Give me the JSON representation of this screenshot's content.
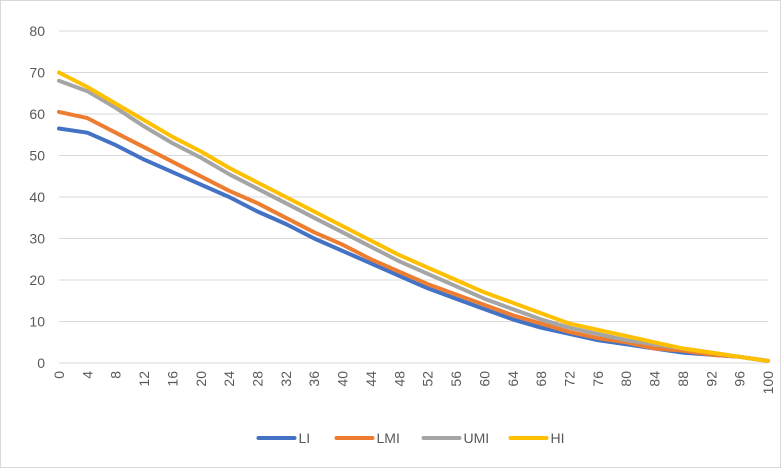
{
  "chart_data": {
    "type": "line",
    "title": "",
    "xlabel": "",
    "ylabel": "",
    "xlim": [
      0,
      100
    ],
    "ylim": [
      0,
      80
    ],
    "x_tick_labels": [
      "0",
      "4",
      "8",
      "12",
      "16",
      "20",
      "24",
      "28",
      "32",
      "36",
      "40",
      "44",
      "48",
      "52",
      "56",
      "60",
      "64",
      "68",
      "72",
      "76",
      "80",
      "84",
      "88",
      "92",
      "96",
      "100"
    ],
    "y_tick_labels": [
      "0",
      "10",
      "20",
      "30",
      "40",
      "50",
      "60",
      "70",
      "80"
    ],
    "grid": "horizontal",
    "legend_position": "bottom",
    "x": [
      0,
      4,
      8,
      12,
      16,
      20,
      24,
      28,
      32,
      36,
      40,
      44,
      48,
      52,
      56,
      60,
      64,
      68,
      72,
      76,
      80,
      84,
      88,
      92,
      96,
      100
    ],
    "series": [
      {
        "name": "LI",
        "color": "#4472C4",
        "values": [
          56.5,
          55.5,
          52.5,
          49.0,
          46.0,
          43.0,
          40.0,
          36.5,
          33.5,
          30.0,
          27.0,
          24.0,
          21.0,
          18.0,
          15.5,
          13.0,
          10.5,
          8.5,
          7.0,
          5.5,
          4.5,
          3.5,
          2.5,
          2.0,
          1.5,
          0.5
        ]
      },
      {
        "name": "LMI",
        "color": "#ED7D31",
        "values": [
          60.5,
          59.0,
          55.5,
          52.0,
          48.5,
          45.0,
          41.5,
          38.5,
          35.0,
          31.5,
          28.5,
          25.0,
          22.0,
          19.0,
          16.5,
          14.0,
          11.5,
          9.5,
          7.5,
          6.0,
          5.0,
          3.5,
          3.0,
          2.0,
          1.5,
          0.5
        ]
      },
      {
        "name": "UMI",
        "color": "#A5A5A5",
        "values": [
          68.0,
          65.5,
          61.5,
          57.0,
          53.0,
          49.5,
          45.5,
          42.0,
          38.5,
          35.0,
          31.5,
          28.0,
          24.5,
          21.5,
          18.5,
          15.5,
          13.0,
          10.5,
          8.5,
          7.0,
          5.5,
          4.5,
          3.5,
          2.5,
          1.5,
          0.5
        ]
      },
      {
        "name": "HI",
        "color": "#FFC000",
        "values": [
          70.0,
          66.5,
          62.5,
          58.5,
          54.5,
          51.0,
          47.0,
          43.5,
          40.0,
          36.5,
          33.0,
          29.5,
          26.0,
          23.0,
          20.0,
          17.0,
          14.5,
          12.0,
          9.5,
          8.0,
          6.5,
          5.0,
          3.5,
          2.5,
          1.5,
          0.5
        ]
      }
    ]
  }
}
